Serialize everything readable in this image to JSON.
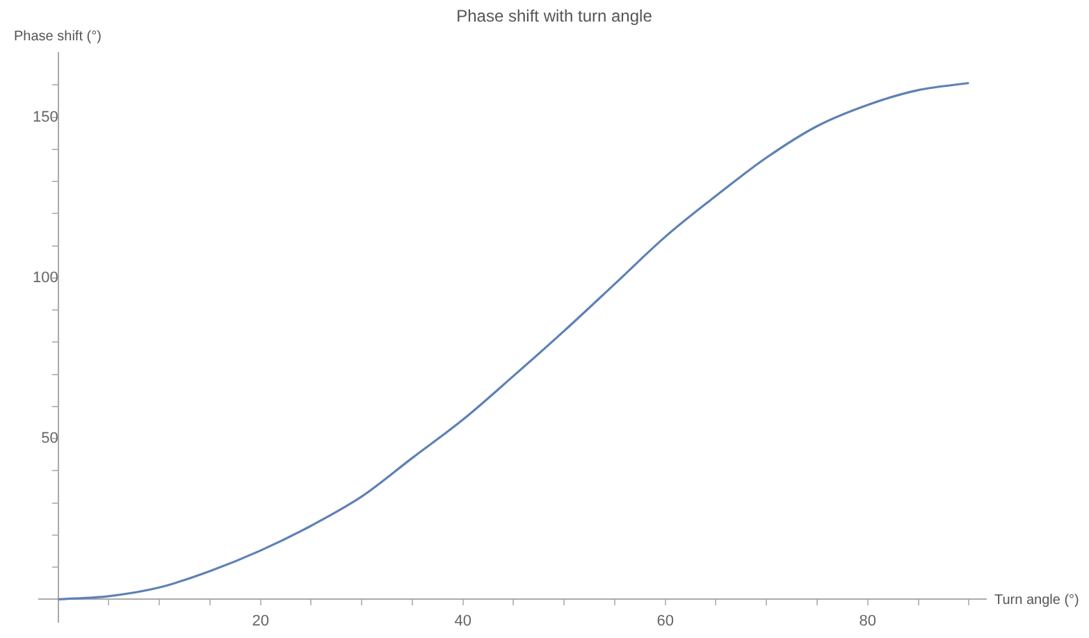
{
  "chart_data": {
    "type": "line",
    "title": "Phase shift with turn angle",
    "xlabel": "Turn angle (°)",
    "ylabel": "Phase shift (°)",
    "x": [
      0,
      5,
      10,
      15,
      20,
      25,
      30,
      35,
      40,
      45,
      50,
      55,
      60,
      65,
      70,
      75,
      80,
      85,
      90
    ],
    "series": [
      {
        "color": "#5e81b5",
        "values": [
          0,
          1,
          3.7,
          8.8,
          15.2,
          22.9,
          32,
          44,
          55.9,
          69.5,
          83.5,
          98.1,
          112.8,
          125.5,
          137.4,
          147.2,
          153.8,
          158.4,
          160.6
        ]
      }
    ],
    "xlim": [
      -1.9,
      91.7
    ],
    "ylim": [
      -7,
      170
    ],
    "xticks": [
      {
        "value": 5,
        "label": null
      },
      {
        "value": 10,
        "label": null
      },
      {
        "value": 15,
        "label": null
      },
      20,
      {
        "value": 25,
        "label": null
      },
      {
        "value": 30,
        "label": null
      },
      {
        "value": 35,
        "label": null
      },
      40,
      {
        "value": 45,
        "label": null
      },
      {
        "value": 50,
        "label": null
      },
      {
        "value": 55,
        "label": null
      },
      60,
      {
        "value": 65,
        "label": null
      },
      {
        "value": 70,
        "label": null
      },
      {
        "value": 75,
        "label": null
      },
      80,
      {
        "value": 85,
        "label": null
      },
      {
        "value": 90,
        "label": null
      }
    ],
    "yticks": [
      {
        "value": 10,
        "label": null
      },
      {
        "value": 20,
        "label": null
      },
      {
        "value": 30,
        "label": null
      },
      {
        "value": 40,
        "label": null
      },
      50,
      {
        "value": 60,
        "label": null
      },
      {
        "value": 70,
        "label": null
      },
      {
        "value": 80,
        "label": null
      },
      {
        "value": 90,
        "label": null
      },
      100,
      {
        "value": 110,
        "label": null
      },
      {
        "value": 120,
        "label": null
      },
      {
        "value": 130,
        "label": null
      },
      {
        "value": 140,
        "label": null
      },
      150,
      {
        "value": 160,
        "label": null
      }
    ],
    "grid": false,
    "legend": false,
    "marker": "none",
    "line_style": "solid"
  }
}
